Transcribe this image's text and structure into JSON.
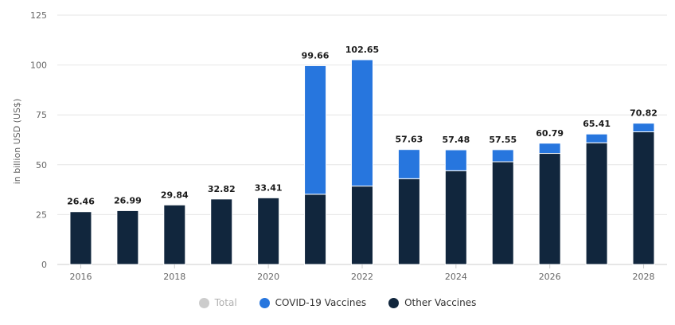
{
  "chart_data": {
    "type": "bar",
    "stacked": true,
    "ylabel": "in billion USD (US$)",
    "xlabel": "",
    "ylim": [
      0,
      125
    ],
    "yticks": [
      0,
      25,
      50,
      75,
      100,
      125
    ],
    "categories": [
      "2016",
      "2017",
      "2018",
      "2019",
      "2020",
      "2021",
      "2022",
      "2023",
      "2024",
      "2025",
      "2026",
      "2027",
      "2028"
    ],
    "x_tick_labels": [
      "2016",
      "2018",
      "2020",
      "2022",
      "2024",
      "2026",
      "2028"
    ],
    "series": [
      {
        "name": "Other Vaccines",
        "color": "#11263d",
        "values": [
          26.46,
          26.99,
          29.84,
          32.82,
          33.41,
          35.2,
          39.3,
          43.0,
          47.0,
          51.5,
          55.7,
          61.0,
          66.5
        ]
      },
      {
        "name": "COVID-19 Vaccines",
        "color": "#2776de",
        "values": [
          0,
          0,
          0,
          0,
          0,
          64.46,
          63.35,
          14.63,
          10.48,
          6.05,
          5.09,
          4.41,
          4.32
        ]
      }
    ],
    "totals": [
      "26.46",
      "26.99",
      "29.84",
      "32.82",
      "33.41",
      "99.66",
      "102.65",
      "57.63",
      "57.48",
      "57.55",
      "60.79",
      "65.41",
      "70.82"
    ],
    "legend": [
      {
        "label": "Total",
        "color": "#cccccc",
        "active": false
      },
      {
        "label": "COVID-19 Vaccines",
        "color": "#2776de",
        "active": true
      },
      {
        "label": "Other Vaccines",
        "color": "#11263d",
        "active": true
      }
    ],
    "legend_position": "bottom-center",
    "grid": true
  }
}
